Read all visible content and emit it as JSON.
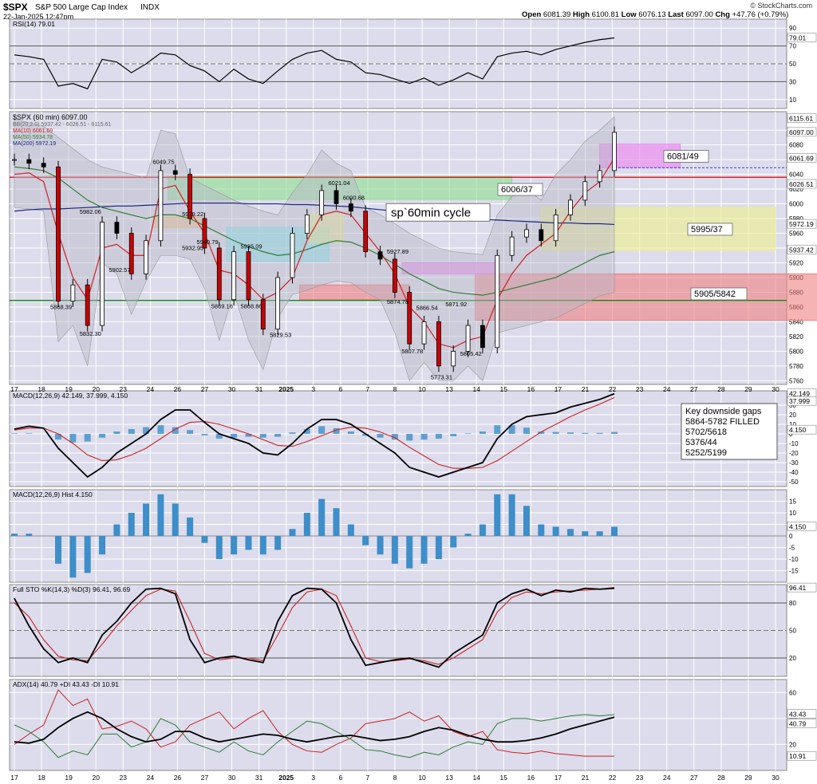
{
  "header": {
    "ticker": "$SPX",
    "name": "S&P 500 Large Cap Index",
    "exchange": "INDX",
    "date": "22-Jan-2025 12:47pm",
    "credit": "© StockCharts.com",
    "open_label": "Open",
    "open": "6081.39",
    "high_label": "High",
    "high": "6100.81",
    "low_label": "Low",
    "low": "6076.13",
    "last_label": "Last",
    "last": "6097.00",
    "chg_label": "Chg",
    "chg": "+47.76 (+0.79%)"
  },
  "colors": {
    "panel_bg": "#dcdcec",
    "grid": "#ffffff",
    "price_line": "#000000",
    "ma10": "#cc2222",
    "ma50": "#2e7d32",
    "ma200": "#1a237e",
    "hist": "#3d8ec9",
    "green_zone": "#8fe08f",
    "pink_zone": "#ee82ee",
    "yellow_zone": "#f0f08c",
    "red_zone": "#f08080",
    "cyan_zone": "#80e8f0",
    "orange_zone": "#f0c080"
  },
  "chart_data": {
    "type": "candlestick",
    "x_tick_labels": [
      "17",
      "18",
      "19",
      "20",
      "23",
      "24",
      "26",
      "27",
      "30",
      "31",
      "2025",
      "3",
      "6",
      "7",
      "8",
      "10",
      "13",
      "14",
      "15",
      "16",
      "17",
      "21",
      "22",
      "23",
      "24",
      "27",
      "28",
      "29",
      "30"
    ],
    "price": {
      "legend": [
        "$SPX (60 min) 6097.00",
        "BB(20,2.0) 5937.42 - 6026.51 - 6115.61",
        "MA(10) 6061.69",
        "MA(50) 5934.78",
        "MA(200) 5972.19"
      ],
      "y_ticks": [
        5760,
        5780,
        5800,
        5820,
        5840,
        5860,
        5880,
        5900,
        5920,
        5940,
        5960,
        5980,
        6000,
        6020,
        6040,
        6060,
        6080,
        6100
      ],
      "y_range": [
        5755,
        6125
      ],
      "right_labels": [
        "6115.61",
        "6097.00",
        "6061.69",
        "6026.51",
        "5972.19",
        "5937.42"
      ],
      "horizontal_lines": [
        6036,
        5869
      ],
      "point_labels": [
        {
          "text": "6049.75",
          "i": 10,
          "v": 6050
        },
        {
          "text": "5982.06",
          "i": 5,
          "v": 5982
        },
        {
          "text": "5979.22",
          "i": 12,
          "v": 5979
        },
        {
          "text": "5940.79",
          "i": 13,
          "v": 5941
        },
        {
          "text": "5935.09",
          "i": 16,
          "v": 5935
        },
        {
          "text": "5932.95",
          "i": 12,
          "v": 5933
        },
        {
          "text": "5902.57",
          "i": 7,
          "v": 5903
        },
        {
          "text": "5868.39",
          "i": 3,
          "v": 5868
        },
        {
          "text": "5832.30",
          "i": 5,
          "v": 5832
        },
        {
          "text": "5869.16",
          "i": 14,
          "v": 5869
        },
        {
          "text": "5868.86",
          "i": 16,
          "v": 5869
        },
        {
          "text": "5829.53",
          "i": 18,
          "v": 5830
        },
        {
          "text": "6021.04",
          "i": 22,
          "v": 6021
        },
        {
          "text": "6000.68",
          "i": 23,
          "v": 6001
        },
        {
          "text": "5927.89",
          "i": 26,
          "v": 5928
        },
        {
          "text": "5874.78",
          "i": 26,
          "v": 5875
        },
        {
          "text": "5866.54",
          "i": 28,
          "v": 5867
        },
        {
          "text": "5871.92",
          "i": 30,
          "v": 5872
        },
        {
          "text": "5807.78",
          "i": 27,
          "v": 5808
        },
        {
          "text": "5805.42",
          "i": 31,
          "v": 5805
        },
        {
          "text": "5773.31",
          "i": 29,
          "v": 5773
        }
      ],
      "zone_labels": {
        "a": "6081/49",
        "b": "6006/37",
        "c": "5995/37",
        "d": "5905/5842"
      },
      "cycle_label": "sp`60min cycle",
      "closes": [
        6060,
        6055,
        6050,
        5868,
        5890,
        5835,
        5975,
        5960,
        5905,
        5950,
        6045,
        6040,
        5980,
        5940,
        5870,
        5935,
        5870,
        5830,
        5900,
        5960,
        5985,
        6018,
        6000,
        5990,
        5935,
        5925,
        5880,
        5810,
        5840,
        5780,
        5800,
        5835,
        5805,
        5930,
        5955,
        5965,
        5950,
        5985,
        6005,
        6030,
        6045,
        6097
      ],
      "ma10": [
        6040,
        6042,
        6030,
        5960,
        5900,
        5870,
        5940,
        5945,
        5930,
        5930,
        6020,
        6025,
        5990,
        5960,
        5910,
        5905,
        5890,
        5870,
        5880,
        5900,
        5950,
        5985,
        5990,
        5985,
        5960,
        5935,
        5905,
        5860,
        5840,
        5810,
        5805,
        5815,
        5820,
        5870,
        5905,
        5930,
        5945,
        5960,
        5990,
        6015,
        6030,
        6062
      ],
      "ma50": [
        6050,
        6048,
        6045,
        6035,
        6020,
        6005,
        5995,
        5990,
        5985,
        5980,
        5985,
        5985,
        5980,
        5970,
        5960,
        5950,
        5942,
        5935,
        5930,
        5932,
        5938,
        5945,
        5950,
        5948,
        5940,
        5930,
        5918,
        5905,
        5895,
        5885,
        5880,
        5878,
        5876,
        5880,
        5885,
        5890,
        5895,
        5900,
        5910,
        5920,
        5930,
        5935
      ],
      "ma200": [
        5990,
        5992,
        5993,
        5993,
        5994,
        5995,
        5996,
        5997,
        5997,
        5998,
        5999,
        6000,
        6001,
        6001,
        6001,
        6001,
        6000,
        6000,
        6000,
        5999,
        5999,
        5998,
        5997,
        5996,
        5994,
        5992,
        5990,
        5988,
        5986,
        5984,
        5982,
        5980,
        5979,
        5978,
        5977,
        5976,
        5975,
        5974,
        5974,
        5973,
        5973,
        5972
      ]
    },
    "rsi": {
      "legend": "RSI(14) 79.01",
      "y_ticks": [
        10,
        30,
        50,
        70,
        90
      ],
      "value_label": "79.01",
      "values": [
        60,
        58,
        55,
        25,
        28,
        22,
        55,
        52,
        40,
        50,
        62,
        60,
        48,
        42,
        30,
        44,
        33,
        28,
        42,
        55,
        62,
        65,
        55,
        52,
        40,
        38,
        33,
        28,
        34,
        26,
        32,
        40,
        33,
        58,
        62,
        64,
        60,
        66,
        70,
        74,
        77,
        79
      ]
    },
    "macd": {
      "legend": "MACD(12,26,9) 42.149, 37.999, 4.150",
      "y_ticks": [
        -50,
        -40,
        -30,
        -20,
        -10,
        0,
        10,
        20,
        30
      ],
      "right_labels": [
        "42.149",
        "37.999",
        "4.150"
      ],
      "macd": [
        5,
        8,
        6,
        -15,
        -30,
        -45,
        -35,
        -20,
        -10,
        0,
        15,
        25,
        25,
        12,
        0,
        -5,
        -10,
        -20,
        -22,
        -10,
        5,
        15,
        15,
        10,
        0,
        -10,
        -20,
        -35,
        -40,
        -45,
        -40,
        -35,
        -30,
        -5,
        10,
        18,
        20,
        22,
        28,
        32,
        36,
        42
      ],
      "signal": [
        4,
        6,
        6,
        0,
        -10,
        -22,
        -28,
        -27,
        -22,
        -15,
        -5,
        5,
        12,
        13,
        10,
        5,
        0,
        -6,
        -12,
        -13,
        -8,
        -2,
        4,
        7,
        6,
        2,
        -4,
        -14,
        -23,
        -32,
        -36,
        -36,
        -35,
        -28,
        -18,
        -8,
        2,
        10,
        18,
        25,
        31,
        38
      ]
    },
    "histogram": {
      "legend": "MACD(12,26,9) Hist 4.150",
      "y_ticks": [
        -15,
        -10,
        -5,
        0,
        5,
        10,
        15
      ],
      "value_label": "4.150",
      "values": [
        1,
        1,
        0,
        -12,
        -18,
        -16,
        -8,
        5,
        10,
        14,
        18,
        14,
        8,
        -3,
        -10,
        -8,
        -6,
        -8,
        -6,
        3,
        10,
        16,
        12,
        5,
        -4,
        -8,
        -12,
        -14,
        -12,
        -10,
        -5,
        1,
        5,
        18,
        18,
        13,
        5,
        4,
        3,
        2,
        2,
        4
      ]
    },
    "stochastic": {
      "legend": "Full STO %K(14,3) %D(3) 96.41, 96.69",
      "y_ticks": [
        20,
        50,
        80
      ],
      "value_label": "96.41",
      "k": [
        85,
        55,
        30,
        15,
        20,
        15,
        45,
        60,
        80,
        95,
        96,
        90,
        40,
        15,
        20,
        22,
        18,
        15,
        60,
        88,
        96,
        95,
        80,
        40,
        12,
        15,
        18,
        20,
        15,
        10,
        25,
        35,
        45,
        80,
        90,
        95,
        88,
        94,
        92,
        96,
        95,
        96
      ],
      "d": [
        80,
        65,
        40,
        22,
        18,
        17,
        35,
        55,
        72,
        88,
        95,
        93,
        60,
        25,
        18,
        20,
        20,
        17,
        45,
        75,
        92,
        95,
        88,
        55,
        20,
        16,
        17,
        19,
        17,
        13,
        20,
        30,
        40,
        70,
        86,
        92,
        90,
        92,
        93,
        94,
        95,
        97
      ]
    },
    "adx": {
      "legend": "ADX(14) 40.79 +DI 43.43 -DI 10.91",
      "y_ticks": [
        20,
        40,
        60
      ],
      "right_labels": [
        "43.43",
        "40.79",
        "10.91"
      ],
      "adx": [
        22,
        21,
        24,
        33,
        40,
        45,
        40,
        32,
        26,
        22,
        24,
        30,
        30,
        25,
        22,
        24,
        26,
        28,
        27,
        24,
        22,
        24,
        26,
        27,
        25,
        23,
        24,
        26,
        30,
        33,
        31,
        27,
        24,
        22,
        22,
        23,
        25,
        28,
        32,
        35,
        38,
        41
      ],
      "plus_di": [
        35,
        30,
        22,
        10,
        15,
        12,
        28,
        28,
        18,
        22,
        40,
        35,
        22,
        18,
        14,
        22,
        15,
        12,
        22,
        30,
        38,
        36,
        30,
        24,
        16,
        15,
        12,
        10,
        14,
        12,
        18,
        22,
        20,
        36,
        40,
        40,
        38,
        40,
        42,
        43,
        42,
        43
      ],
      "minus_di": [
        20,
        28,
        35,
        62,
        50,
        55,
        32,
        34,
        38,
        32,
        18,
        22,
        35,
        40,
        45,
        32,
        40,
        46,
        30,
        20,
        15,
        14,
        20,
        25,
        36,
        38,
        40,
        45,
        38,
        42,
        30,
        26,
        30,
        16,
        14,
        13,
        15,
        13,
        12,
        11,
        11,
        11
      ]
    },
    "gaps_box": {
      "lines": [
        "Key downside gaps",
        "5864-5782 FILLED",
        "5702/5618",
        "5376/44",
        "5252/5199"
      ]
    }
  }
}
